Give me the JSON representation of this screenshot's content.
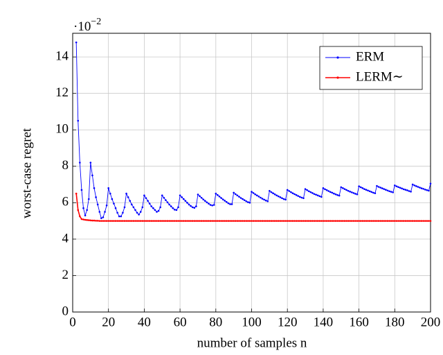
{
  "chart_data": {
    "type": "line",
    "xlabel": "number of samples n",
    "ylabel": "worst-case regret",
    "y_multiplier": {
      "base": "·10",
      "exponent": "−2"
    },
    "xlim": [
      0,
      200
    ],
    "ylim": [
      0,
      15.3
    ],
    "xticks": [
      0,
      20,
      40,
      60,
      80,
      100,
      120,
      140,
      160,
      180,
      200
    ],
    "yticks": [
      0,
      2,
      4,
      6,
      8,
      10,
      12,
      14
    ],
    "grid": true,
    "legend": "top-right",
    "x": [
      2,
      3,
      4,
      5,
      6,
      7,
      8,
      9,
      10,
      11,
      12,
      13,
      14,
      15,
      16,
      17,
      18,
      19,
      20,
      21,
      22,
      23,
      24,
      25,
      26,
      27,
      28,
      29,
      30,
      31,
      32,
      33,
      34,
      35,
      36,
      37,
      38,
      39,
      40,
      41,
      42,
      43,
      44,
      45,
      46,
      47,
      48,
      49,
      50,
      51,
      52,
      53,
      54,
      55,
      56,
      57,
      58,
      59,
      60,
      61,
      62,
      63,
      64,
      65,
      66,
      67,
      68,
      69,
      70,
      71,
      72,
      73,
      74,
      75,
      76,
      77,
      78,
      79,
      80,
      81,
      82,
      83,
      84,
      85,
      86,
      87,
      88,
      89,
      90,
      91,
      92,
      93,
      94,
      95,
      96,
      97,
      98,
      99,
      100,
      101,
      102,
      103,
      104,
      105,
      106,
      107,
      108,
      109,
      110,
      111,
      112,
      113,
      114,
      115,
      116,
      117,
      118,
      119,
      120,
      121,
      122,
      123,
      124,
      125,
      126,
      127,
      128,
      129,
      130,
      131,
      132,
      133,
      134,
      135,
      136,
      137,
      138,
      139,
      140,
      141,
      142,
      143,
      144,
      145,
      146,
      147,
      148,
      149,
      150,
      151,
      152,
      153,
      154,
      155,
      156,
      157,
      158,
      159,
      160,
      161,
      162,
      163,
      164,
      165,
      166,
      167,
      168,
      169,
      170,
      171,
      172,
      173,
      174,
      175,
      176,
      177,
      178,
      179,
      180,
      181,
      182,
      183,
      184,
      185,
      186,
      187,
      188,
      189,
      190,
      191,
      192,
      193,
      194,
      195,
      196,
      197,
      198,
      199,
      200
    ],
    "series": [
      {
        "name": "ERM",
        "color": "#0000ff",
        "values": [
          14.8,
          10.5,
          8.2,
          6.7,
          5.7,
          5.3,
          5.6,
          6.2,
          8.2,
          7.5,
          6.8,
          6.3,
          5.9,
          5.5,
          5.15,
          5.2,
          5.5,
          5.85,
          6.8,
          6.5,
          6.2,
          5.95,
          5.7,
          5.45,
          5.25,
          5.25,
          5.45,
          5.75,
          6.5,
          6.3,
          6.1,
          5.9,
          5.75,
          5.6,
          5.45,
          5.35,
          5.5,
          5.75,
          6.4,
          6.25,
          6.1,
          5.95,
          5.8,
          5.7,
          5.6,
          5.5,
          5.55,
          5.75,
          6.4,
          6.27,
          6.14,
          6.02,
          5.9,
          5.8,
          5.7,
          5.62,
          5.6,
          5.75,
          6.4,
          6.3,
          6.2,
          6.1,
          6.0,
          5.9,
          5.82,
          5.75,
          5.72,
          5.8,
          6.45,
          6.36,
          6.27,
          6.18,
          6.1,
          6.02,
          5.95,
          5.88,
          5.85,
          5.88,
          6.5,
          6.42,
          6.34,
          6.26,
          6.18,
          6.11,
          6.04,
          5.97,
          5.92,
          5.92,
          6.55,
          6.47,
          6.4,
          6.33,
          6.26,
          6.2,
          6.14,
          6.08,
          6.03,
          6.0,
          6.6,
          6.53,
          6.46,
          6.4,
          6.34,
          6.28,
          6.22,
          6.17,
          6.12,
          6.08,
          6.65,
          6.58,
          6.52,
          6.46,
          6.4,
          6.35,
          6.3,
          6.25,
          6.2,
          6.17,
          6.7,
          6.64,
          6.58,
          6.52,
          6.47,
          6.42,
          6.37,
          6.32,
          6.28,
          6.25,
          6.75,
          6.69,
          6.63,
          6.58,
          6.53,
          6.48,
          6.44,
          6.4,
          6.36,
          6.32,
          6.8,
          6.74,
          6.69,
          6.64,
          6.59,
          6.55,
          6.5,
          6.46,
          6.42,
          6.39,
          6.85,
          6.8,
          6.75,
          6.7,
          6.65,
          6.61,
          6.57,
          6.53,
          6.49,
          6.46,
          6.9,
          6.85,
          6.8,
          6.75,
          6.71,
          6.67,
          6.63,
          6.59,
          6.55,
          6.52,
          6.92,
          6.87,
          6.83,
          6.79,
          6.75,
          6.71,
          6.67,
          6.63,
          6.6,
          6.57,
          6.95,
          6.9,
          6.86,
          6.82,
          6.78,
          6.74,
          6.71,
          6.68,
          6.64,
          6.61,
          7.0,
          6.95,
          6.91,
          6.87,
          6.83,
          6.79,
          6.76,
          6.72,
          6.69,
          6.66,
          7.05
        ]
      },
      {
        "name": "LERM∼",
        "color": "#ff0000",
        "values": [
          6.5,
          5.6,
          5.25,
          5.1,
          5.08,
          5.06,
          5.05,
          5.04,
          5.03,
          5.02,
          5.02,
          5.01,
          5.01,
          5,
          5,
          5,
          5,
          5,
          5,
          5,
          5,
          5,
          5,
          5,
          5,
          5,
          5,
          5,
          5,
          5,
          5,
          5,
          5,
          5,
          5,
          5,
          5,
          5,
          5,
          5,
          5,
          5,
          5,
          5,
          5,
          5,
          5,
          5,
          5,
          5,
          5,
          5,
          5,
          5,
          5,
          5,
          5,
          5,
          5,
          5,
          5,
          5,
          5,
          5,
          5,
          5,
          5,
          5,
          5,
          5,
          5,
          5,
          5,
          5,
          5,
          5,
          5,
          5,
          5,
          5,
          5,
          5,
          5,
          5,
          5,
          5,
          5,
          5,
          5,
          5,
          5,
          5,
          5,
          5,
          5,
          5,
          5,
          5,
          5,
          5,
          5,
          5,
          5,
          5,
          5,
          5,
          5,
          5,
          5,
          5,
          5,
          5,
          5,
          5,
          5,
          5,
          5,
          5,
          5,
          5,
          5,
          5,
          5,
          5,
          5,
          5,
          5,
          5,
          5,
          5,
          5,
          5,
          5,
          5,
          5,
          5,
          5,
          5,
          5,
          5,
          5,
          5,
          5,
          5,
          5,
          5,
          5,
          5,
          5,
          5,
          5,
          5,
          5,
          5,
          5,
          5,
          5,
          5,
          5,
          5,
          5,
          5,
          5,
          5,
          5,
          5,
          5,
          5,
          5,
          5,
          5,
          5,
          5,
          5,
          5,
          5,
          5,
          5,
          5,
          5,
          5,
          5,
          5,
          5,
          5,
          5,
          5,
          5,
          5,
          5,
          5,
          5,
          5,
          5,
          5,
          5,
          5,
          5,
          5
        ]
      }
    ]
  }
}
